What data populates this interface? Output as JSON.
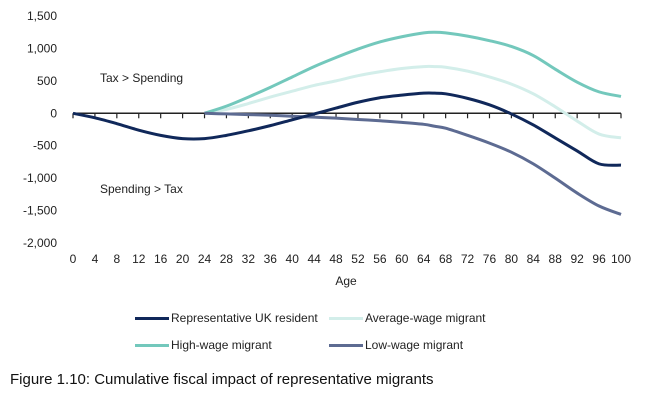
{
  "caption": "Figure 1.10: Cumulative fiscal impact of representative migrants",
  "chart_data": {
    "type": "line",
    "xlabel": "Age",
    "ylabel": "",
    "xlim": [
      0,
      100
    ],
    "ylim": [
      -2000,
      1500
    ],
    "x_ticks": [
      0,
      4,
      8,
      12,
      16,
      20,
      24,
      28,
      32,
      36,
      40,
      44,
      48,
      52,
      56,
      60,
      64,
      68,
      72,
      76,
      80,
      84,
      88,
      92,
      96,
      100
    ],
    "y_ticks": [
      1500,
      1000,
      500,
      0,
      -500,
      -1000,
      -1500,
      -2000
    ],
    "y_tick_labels": [
      "1,500",
      "1,000",
      "500",
      "0",
      "-500",
      "-1,000",
      "-1,500",
      "-2,000"
    ],
    "annotations": [
      "Tax > Spending",
      "Spending > Tax"
    ],
    "legend_position": "bottom",
    "series": [
      {
        "name": "Representative UK resident",
        "color": "#10285a",
        "x": [
          0,
          4,
          8,
          12,
          16,
          20,
          24,
          28,
          32,
          36,
          40,
          44,
          48,
          52,
          56,
          60,
          64,
          66,
          68,
          72,
          76,
          80,
          84,
          88,
          92,
          96,
          100
        ],
        "y": [
          0,
          -70,
          -160,
          -260,
          -340,
          -390,
          -390,
          -340,
          -270,
          -190,
          -100,
          -10,
          80,
          170,
          240,
          280,
          310,
          310,
          300,
          230,
          130,
          -10,
          -180,
          -380,
          -580,
          -780,
          -800
        ]
      },
      {
        "name": "Average-wage migrant",
        "color": "#d3eeea",
        "x": [
          24,
          28,
          32,
          36,
          40,
          44,
          48,
          52,
          56,
          60,
          64,
          66,
          68,
          72,
          76,
          80,
          84,
          88,
          92,
          96,
          100
        ],
        "y": [
          0,
          60,
          150,
          250,
          340,
          430,
          500,
          580,
          640,
          690,
          720,
          720,
          710,
          650,
          560,
          450,
          300,
          100,
          -120,
          -320,
          -380
        ]
      },
      {
        "name": "High-wage migrant",
        "color": "#73c8bc",
        "x": [
          24,
          28,
          32,
          36,
          40,
          44,
          48,
          52,
          56,
          60,
          64,
          66,
          68,
          72,
          76,
          80,
          84,
          88,
          92,
          96,
          100
        ],
        "y": [
          0,
          110,
          250,
          400,
          560,
          720,
          860,
          990,
          1100,
          1180,
          1240,
          1250,
          1240,
          1190,
          1120,
          1030,
          890,
          680,
          480,
          330,
          260
        ]
      },
      {
        "name": "Low-wage migrant",
        "color": "#5d6b92",
        "x": [
          24,
          28,
          32,
          36,
          40,
          44,
          48,
          52,
          56,
          60,
          64,
          66,
          68,
          72,
          76,
          80,
          84,
          88,
          92,
          96,
          100
        ],
        "y": [
          0,
          -10,
          -20,
          -30,
          -45,
          -60,
          -75,
          -95,
          -115,
          -140,
          -170,
          -200,
          -230,
          -340,
          -460,
          -600,
          -780,
          -1000,
          -1230,
          -1430,
          -1560
        ]
      }
    ]
  }
}
